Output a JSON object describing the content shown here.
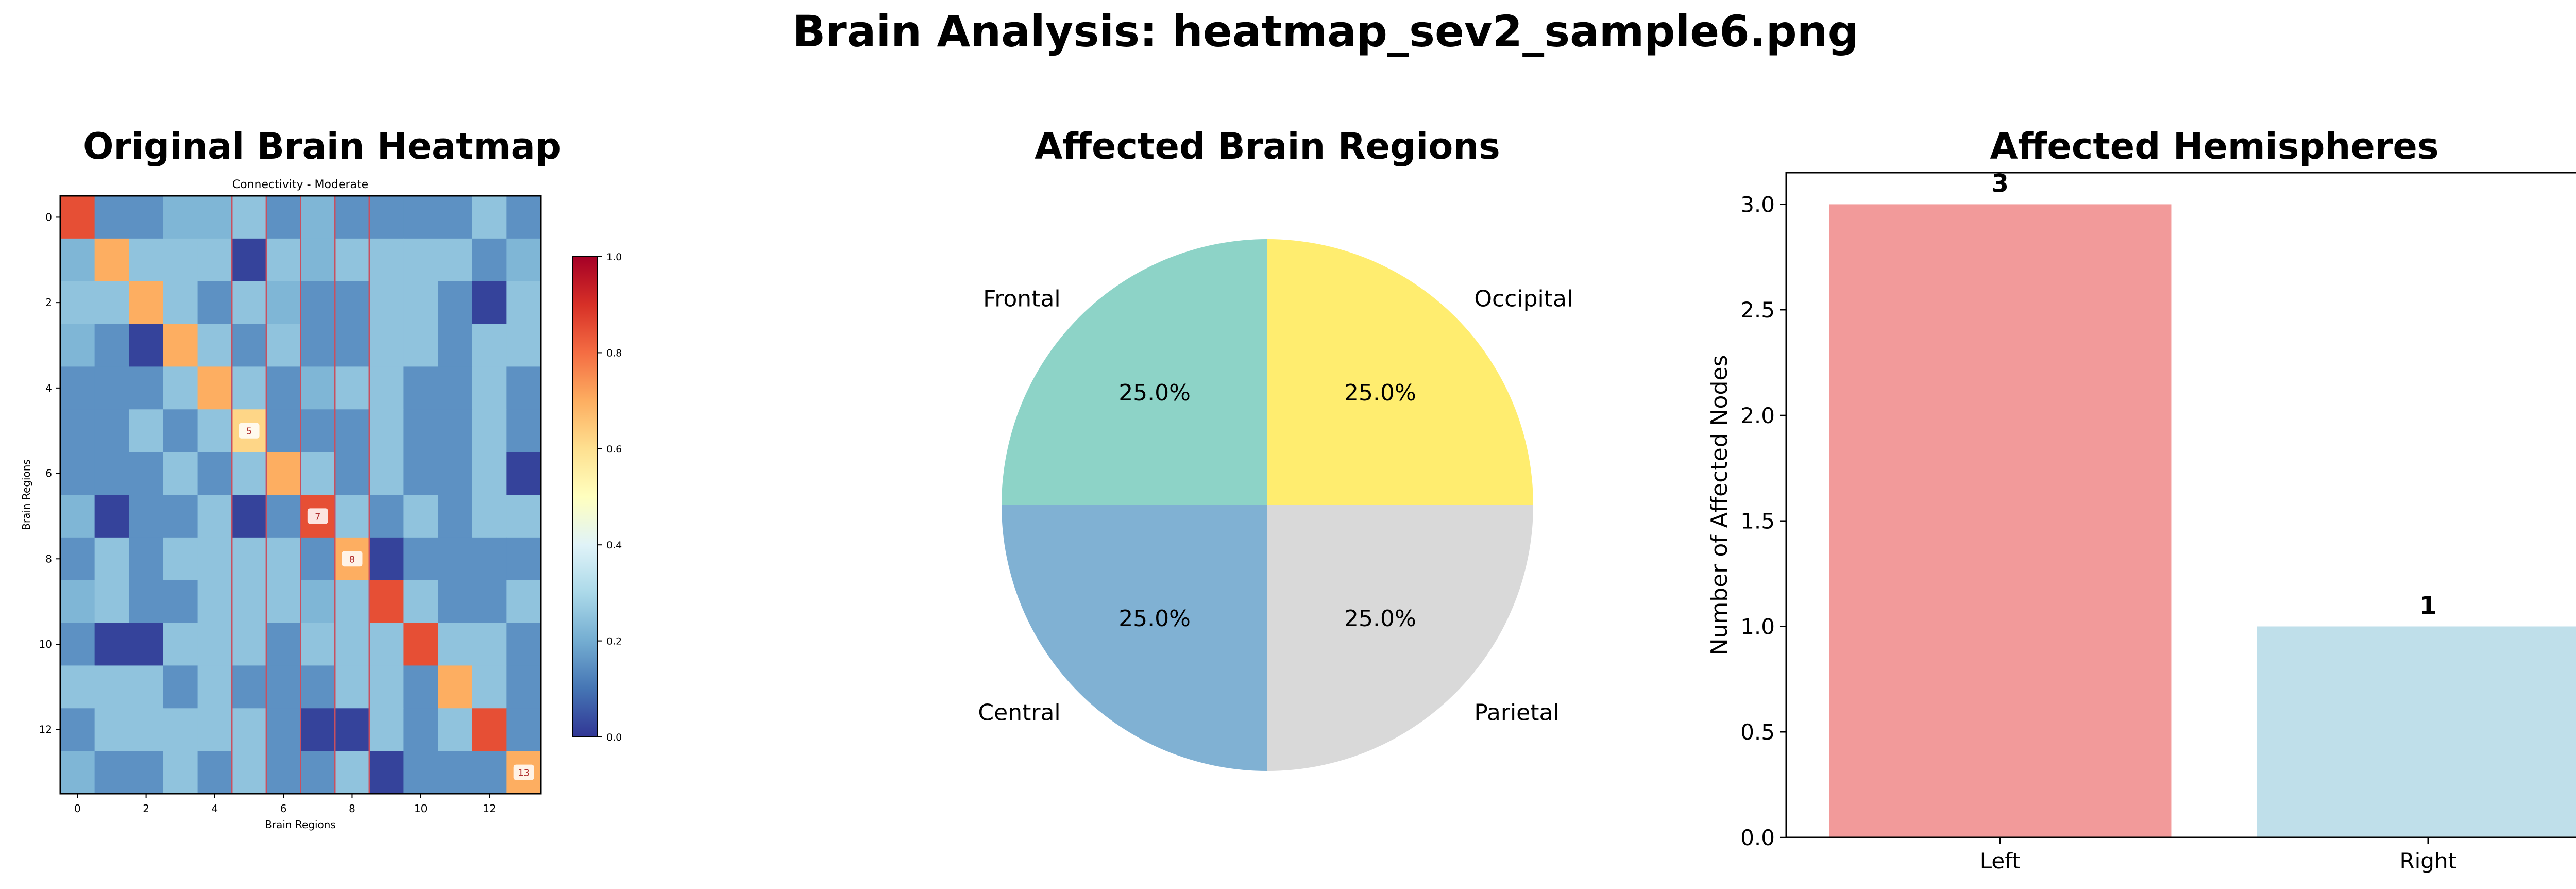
{
  "figure": {
    "title": "Brain Analysis: heatmap_sev2_sample6.png"
  },
  "panels": {
    "heatmap": {
      "title": "Original Brain Heatmap"
    },
    "pie": {
      "title": "Affected Brain Regions"
    },
    "bar": {
      "title": "Affected Hemispheres"
    }
  },
  "colors": {
    "pie": [
      "#8dd3c7",
      "#ffed6f",
      "#d9d9d9",
      "#80b1d3"
    ],
    "bar": [
      "#f29a9a",
      "#bfdfea"
    ],
    "highlight_line": "#c85060",
    "cmap": [
      "#313695",
      "#4575b4",
      "#74add1",
      "#abd9e9",
      "#e0f3f8",
      "#ffffbf",
      "#fee090",
      "#fdae61",
      "#f46d43",
      "#d73027",
      "#a50026"
    ]
  },
  "chart_data": [
    {
      "type": "heatmap",
      "title": "Connectivity - Moderate",
      "xlabel": "Brain Regions",
      "ylabel": "Brain Regions",
      "x_ticks": [
        "0",
        "2",
        "4",
        "6",
        "8",
        "10",
        "12"
      ],
      "y_ticks": [
        "0",
        "2",
        "4",
        "6",
        "8",
        "10",
        "12"
      ],
      "colorbar": {
        "range": [
          0,
          1
        ],
        "ticks": [
          "0.0",
          "0.2",
          "0.4",
          "0.6",
          "0.8",
          "1.0"
        ]
      },
      "highlighted_nodes": [
        5,
        7,
        8,
        13
      ],
      "node_labels": [
        "5",
        "7",
        "8",
        "13"
      ],
      "matrix": [
        [
          0.85,
          0.15,
          0.15,
          0.22,
          0.22,
          0.25,
          0.15,
          0.22,
          0.15,
          0.15,
          0.15,
          0.15,
          0.25,
          0.15
        ],
        [
          0.22,
          0.7,
          0.25,
          0.25,
          0.25,
          0.02,
          0.25,
          0.22,
          0.25,
          0.25,
          0.25,
          0.25,
          0.15,
          0.22
        ],
        [
          0.25,
          0.25,
          0.7,
          0.25,
          0.15,
          0.25,
          0.22,
          0.15,
          0.15,
          0.25,
          0.25,
          0.15,
          0.02,
          0.25
        ],
        [
          0.22,
          0.15,
          0.02,
          0.7,
          0.25,
          0.15,
          0.25,
          0.15,
          0.15,
          0.25,
          0.25,
          0.15,
          0.25,
          0.25
        ],
        [
          0.15,
          0.15,
          0.15,
          0.25,
          0.7,
          0.25,
          0.15,
          0.22,
          0.25,
          0.25,
          0.15,
          0.15,
          0.25,
          0.15
        ],
        [
          0.15,
          0.15,
          0.25,
          0.15,
          0.25,
          0.62,
          0.15,
          0.15,
          0.15,
          0.25,
          0.15,
          0.15,
          0.25,
          0.15
        ],
        [
          0.15,
          0.15,
          0.15,
          0.25,
          0.15,
          0.25,
          0.7,
          0.25,
          0.15,
          0.25,
          0.15,
          0.15,
          0.25,
          0.02
        ],
        [
          0.22,
          0.02,
          0.15,
          0.15,
          0.25,
          0.02,
          0.15,
          0.85,
          0.25,
          0.15,
          0.25,
          0.15,
          0.25,
          0.25
        ],
        [
          0.15,
          0.25,
          0.15,
          0.25,
          0.25,
          0.25,
          0.25,
          0.15,
          0.7,
          0.02,
          0.15,
          0.15,
          0.15,
          0.15
        ],
        [
          0.22,
          0.25,
          0.15,
          0.15,
          0.25,
          0.25,
          0.25,
          0.22,
          0.25,
          0.85,
          0.25,
          0.15,
          0.15,
          0.25
        ],
        [
          0.15,
          0.02,
          0.02,
          0.25,
          0.25,
          0.25,
          0.15,
          0.25,
          0.25,
          0.25,
          0.85,
          0.25,
          0.25,
          0.15
        ],
        [
          0.25,
          0.25,
          0.25,
          0.15,
          0.25,
          0.15,
          0.15,
          0.15,
          0.25,
          0.25,
          0.15,
          0.7,
          0.25,
          0.15
        ],
        [
          0.15,
          0.25,
          0.25,
          0.25,
          0.25,
          0.25,
          0.15,
          0.02,
          0.02,
          0.25,
          0.15,
          0.25,
          0.85,
          0.15
        ],
        [
          0.22,
          0.15,
          0.15,
          0.25,
          0.15,
          0.25,
          0.15,
          0.15,
          0.25,
          0.02,
          0.15,
          0.15,
          0.15,
          0.7
        ]
      ]
    },
    {
      "type": "pie",
      "title": "Affected Brain Regions",
      "labels": [
        "Frontal",
        "Occipital",
        "Parietal",
        "Central"
      ],
      "values": [
        1,
        1,
        1,
        1
      ],
      "pct_labels": [
        "25.0%",
        "25.0%",
        "25.0%",
        "25.0%"
      ]
    },
    {
      "type": "bar",
      "title": "Affected Hemispheres",
      "categories": [
        "Left",
        "Right"
      ],
      "values": [
        3,
        1
      ],
      "value_labels": [
        "3",
        "1"
      ],
      "ylabel": "Number of Affected Nodes",
      "ylim": [
        0,
        3.15
      ],
      "y_ticks": [
        "0.0",
        "0.5",
        "1.0",
        "1.5",
        "2.0",
        "2.5",
        "3.0"
      ]
    }
  ]
}
